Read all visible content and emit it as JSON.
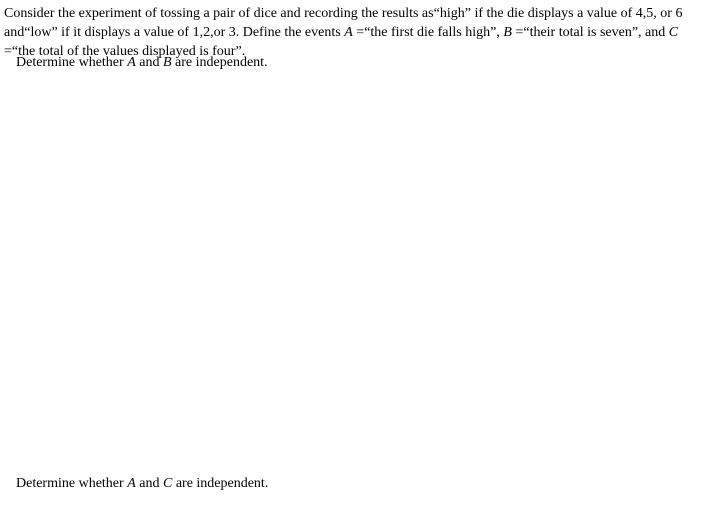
{
  "intro": {
    "t1": "Consider the experiment of tossing a pair of dice and recording the results as",
    "q_open": "“",
    "high": "high",
    "q_close": "”",
    "t2": " if the die displays a value of 4,5, or 6 and",
    "low": "low",
    "t3": " if it displays a value of 1,2,or 3.  Define the events ",
    "A": "A",
    "eq": " =",
    "evA": "the first die falls high",
    "comma": ",  ",
    "B": "B",
    "evB": "their total is seven",
    "and": ", and ",
    "C": "C",
    "evC": "the total of the values displayed is four",
    "end": "."
  },
  "q1": {
    "pre": "Determine whether ",
    "A": "A",
    "mid": " and ",
    "B": "B",
    "post": " are independent."
  },
  "q2": {
    "pre": "Determine whether ",
    "A": "A",
    "mid": " and ",
    "C": "C",
    "post": " are independent."
  }
}
